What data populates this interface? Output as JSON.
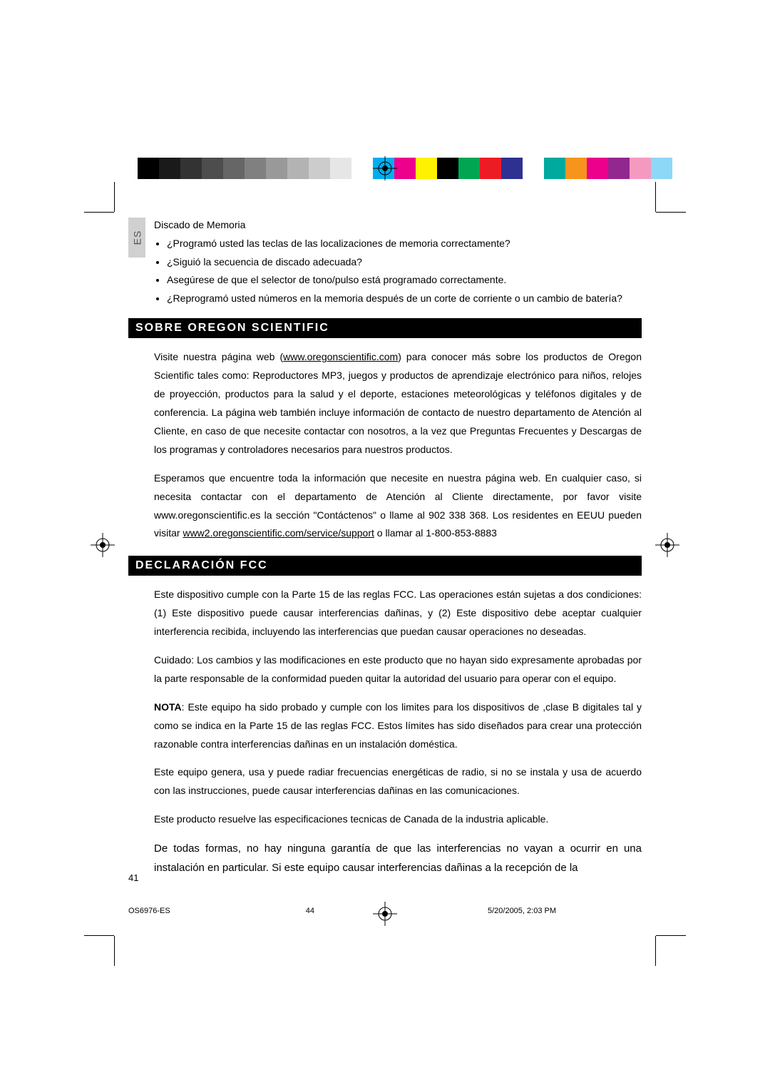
{
  "colorbar": {
    "grays": [
      "#000000",
      "#1a1a1a",
      "#333333",
      "#4d4d4d",
      "#666666",
      "#808080",
      "#999999",
      "#b3b3b3",
      "#cccccc",
      "#e6e6e6",
      "#ffffff"
    ],
    "colors": [
      "#00aeef",
      "#ec008c",
      "#fff200",
      "#000000",
      "#00a651",
      "#ed1c24",
      "#2e3192",
      "#ffffff",
      "#00a99d",
      "#f7941d",
      "#ec008c",
      "#92278f",
      "#f49ac1",
      "#8dd7f7",
      "#ffffff"
    ]
  },
  "lang_tab": "ES",
  "discado": {
    "title": "Discado de Memoria",
    "items": [
      "¿Programó usted las teclas de las localizaciones de memoria correctamente?",
      "¿Siguió la secuencia de discado adecuada?",
      "Asegúrese de que el selector de tono/pulso está programado correctamente.",
      "¿Reprogramó usted  números en la memoria después de un corte de corriente o un cambio de batería?"
    ]
  },
  "section1": {
    "title": "SOBRE  OREGON  SCIENTIFIC",
    "p1_a": "Visite nuestra página web (",
    "p1_link": "www.oregonscientific.com",
    "p1_b": ") para conocer más sobre los productos de Oregon Scientific tales como: Reproductores MP3, juegos y productos de aprendizaje electrónico para niños, relojes de proyección, productos para la salud y el deporte, estaciones meteorológicas y teléfonos digitales y de conferencia. La página web también incluye información de contacto de nuestro departamento de Atención al Cliente, en caso de que necesite contactar con nosotros, a la vez que Preguntas Frecuentes y Descargas de los programas y controladores necesarios para nuestros productos.",
    "p2_a": "Esperamos que encuentre toda la información que necesite en nuestra página web. En cualquier caso, si necesita contactar con el departamento de Atención al Cliente directamente, por favor visite www.oregonscientific.es la sección \"Contáctenos\" o llame al 902 338 368. Los residentes en EEUU pueden visitar ",
    "p2_link": "www2.oregonscientific.com/service/support",
    "p2_b": "  o llamar al 1-800-853-8883"
  },
  "section2": {
    "title": "DECLARACIÓN  FCC",
    "p1": "Este dispositivo cumple con la Parte 15 de las reglas FCC. Las operaciones están sujetas a dos condiciones: (1) Este dispositivo puede causar interferencias dañinas, y (2) Este dispositivo debe aceptar cualquier interferencia recibida, incluyendo las interferencias que puedan causar operaciones no deseadas.",
    "p2": "Cuidado: Los cambios y las modificaciones en este producto que no hayan sido expresamente aprobadas por la parte responsable de la conformidad pueden quitar la autoridad del usuario para operar con el equipo.",
    "p3_bold": "NOTA",
    "p3": ": Este equipo ha sido probado y cumple con los limites para los dispositivos de ,clase B digitales tal y como se indica en la Parte 15 de las reglas FCC. Estos límites has sido diseñados para crear una protección razonable contra interferencias dañinas en un instalación doméstica.",
    "p4": "Este equipo genera, usa y puede radiar frecuencias energéticas de radio, si no se instala y usa de acuerdo con las instrucciones, puede causar interferencias dañinas en las comunicaciones.",
    "p5": "Este producto resuelve las especificaciones tecnicas de Canada de la industria aplicable.",
    "p6": "De todas formas, no hay ninguna garantía de que las interferencias no vayan a ocurrir en una instalación en particular. Si este equipo causar interferencias dañinas a la recepción de la"
  },
  "page_number": "41",
  "footer": {
    "filename": "OS6976-ES",
    "page": "44",
    "datetime": "5/20/2005, 2:03 PM"
  }
}
